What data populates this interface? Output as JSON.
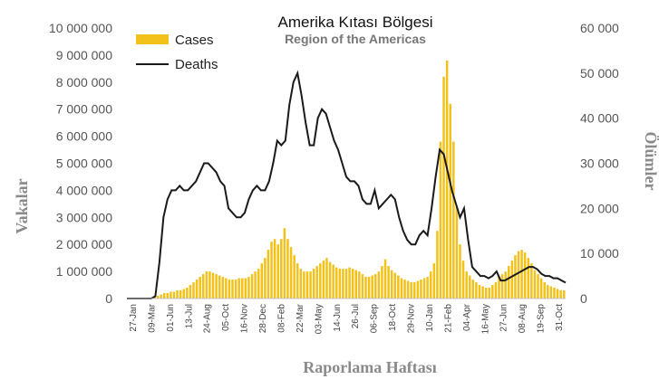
{
  "chart_data": {
    "type": "bar+line",
    "title": "Amerika Kıtası Bölgesi",
    "subtitle": "Region of the Americas",
    "xlabel": "Raporlama Haftası",
    "ylabel_left": "Vakalar",
    "ylabel_right": "Ölümler",
    "ylim_left": [
      0,
      10000000
    ],
    "ylim_right": [
      0,
      60000
    ],
    "yticks_left": [
      "0",
      "1 000 000",
      "2 000 000",
      "3 000 000",
      "4 000 000",
      "5 000 000",
      "6 000 000",
      "7 000 000",
      "8 000 000",
      "9 000 000",
      "10 000 000"
    ],
    "yticks_right": [
      "0",
      "10 000",
      "20 000",
      "30 000",
      "40 000",
      "50 000",
      "60 000"
    ],
    "xticks": [
      "27-Jan",
      "09-Mar",
      "01-Jun",
      "13-Jul",
      "24-Aug",
      "05-Oct",
      "16-Nov",
      "28-Dec",
      "08-Feb",
      "22-Mar",
      "03-May",
      "14-Jun",
      "26-Jul",
      "06-Sep",
      "18-Oct",
      "29-Nov",
      "10-Jan",
      "21-Feb",
      "04-Apr",
      "16-May",
      "27-Jun",
      "08-Aug",
      "19-Sep",
      "31-Oct"
    ],
    "legend": {
      "position": "top-left",
      "entries": [
        "Cases",
        "Deaths"
      ]
    },
    "colors": {
      "cases": "#F2C21B",
      "deaths": "#1a1a1a"
    },
    "grid": false,
    "series": [
      {
        "name": "Cases",
        "type": "bar",
        "axis": "left",
        "values": [
          0,
          0,
          0,
          0,
          0,
          0,
          0,
          0,
          50000,
          100000,
          150000,
          200000,
          200000,
          250000,
          250000,
          300000,
          300000,
          350000,
          400000,
          500000,
          600000,
          700000,
          800000,
          900000,
          1000000,
          1000000,
          950000,
          900000,
          850000,
          800000,
          750000,
          700000,
          700000,
          700000,
          750000,
          750000,
          750000,
          800000,
          900000,
          1000000,
          1100000,
          1300000,
          1500000,
          1800000,
          2100000,
          2200000,
          2000000,
          2200000,
          2600000,
          2200000,
          1900000,
          1600000,
          1300000,
          1100000,
          1000000,
          1000000,
          1000000,
          1100000,
          1200000,
          1300000,
          1400000,
          1500000,
          1350000,
          1250000,
          1150000,
          1100000,
          1100000,
          1100000,
          1150000,
          1100000,
          1050000,
          1000000,
          900000,
          800000,
          800000,
          850000,
          900000,
          1000000,
          1200000,
          1450000,
          1200000,
          1050000,
          950000,
          850000,
          750000,
          700000,
          650000,
          600000,
          600000,
          650000,
          700000,
          750000,
          800000,
          1000000,
          1300000,
          2500000,
          5800000,
          8200000,
          8800000,
          7200000,
          5800000,
          3400000,
          2000000,
          1400000,
          1000000,
          850000,
          700000,
          600000,
          500000,
          450000,
          400000,
          400000,
          500000,
          600000,
          800000,
          900000,
          1000000,
          1200000,
          1400000,
          1600000,
          1750000,
          1800000,
          1700000,
          1500000,
          1300000,
          1050000,
          900000,
          750000,
          600000,
          500000,
          450000,
          400000,
          350000,
          300000,
          300000
        ]
      },
      {
        "name": "Deaths",
        "type": "line",
        "axis": "right",
        "values": [
          0,
          0,
          0,
          0,
          0,
          0,
          0,
          500,
          8000,
          18000,
          22000,
          24000,
          24000,
          25000,
          24000,
          24000,
          25000,
          26000,
          28000,
          30000,
          30000,
          29000,
          28000,
          26000,
          25000,
          20000,
          19000,
          18000,
          18000,
          19000,
          22000,
          24000,
          25000,
          24000,
          24000,
          26000,
          30000,
          35000,
          34000,
          35000,
          43000,
          48000,
          50000,
          45000,
          39000,
          34000,
          34000,
          40000,
          42000,
          41000,
          38000,
          35000,
          33000,
          30000,
          27000,
          26000,
          26000,
          25000,
          22000,
          21000,
          21000,
          24000,
          20000,
          21000,
          22000,
          23000,
          22000,
          18000,
          15000,
          13000,
          12000,
          12000,
          14000,
          15000,
          14000,
          20000,
          27000,
          33000,
          32000,
          28000,
          24000,
          21000,
          18000,
          20000,
          13000,
          7000,
          6000,
          5000,
          5000,
          4500,
          5000,
          6000,
          4000,
          4000,
          4500,
          5000,
          5500,
          6000,
          6500,
          7000,
          7000,
          6500,
          5500,
          5000,
          5000,
          4500,
          4500,
          4000,
          3500
        ]
      }
    ]
  }
}
